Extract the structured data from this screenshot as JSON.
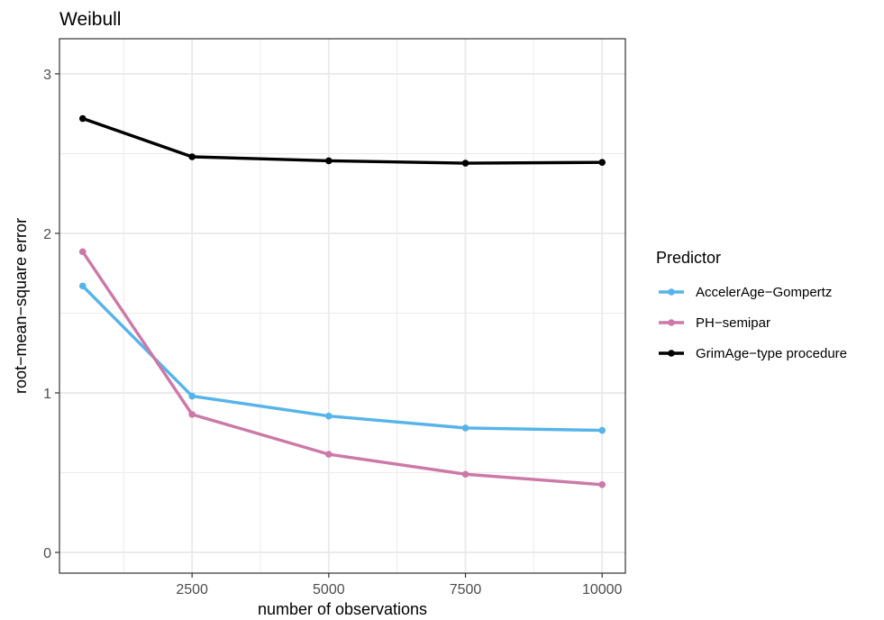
{
  "chart_data": {
    "type": "line",
    "title": "Weibull",
    "xlabel": "number of observations",
    "ylabel": "root−mean−square error",
    "x": [
      500,
      2500,
      5000,
      7500,
      10000
    ],
    "xlim": [
      75,
      10425
    ],
    "ylim": [
      -0.13,
      3.22
    ],
    "x_ticks": [
      2500,
      5000,
      7500,
      10000
    ],
    "x_tick_labels": [
      "2500",
      "5000",
      "7500",
      "10000"
    ],
    "x_minor_ticks": [
      1250,
      3750,
      6250,
      8750
    ],
    "y_ticks": [
      0,
      1,
      2,
      3
    ],
    "y_tick_labels": [
      "0",
      "1",
      "2",
      "3"
    ],
    "y_minor_ticks": [
      0.5,
      1.5,
      2.5
    ],
    "grid": true,
    "legend": {
      "title": "Predictor",
      "placement": "right"
    },
    "series": [
      {
        "name": "AccelerAge−Gompertz",
        "color": "#56B4E9",
        "values": [
          1.67,
          0.98,
          0.855,
          0.78,
          0.765
        ]
      },
      {
        "name": "PH−semipar",
        "color": "#CC79A7",
        "values": [
          1.885,
          0.865,
          0.615,
          0.49,
          0.425
        ]
      },
      {
        "name": "GrimAge−type procedure",
        "color": "#000000",
        "values": [
          2.72,
          2.48,
          2.455,
          2.44,
          2.445
        ]
      }
    ]
  }
}
